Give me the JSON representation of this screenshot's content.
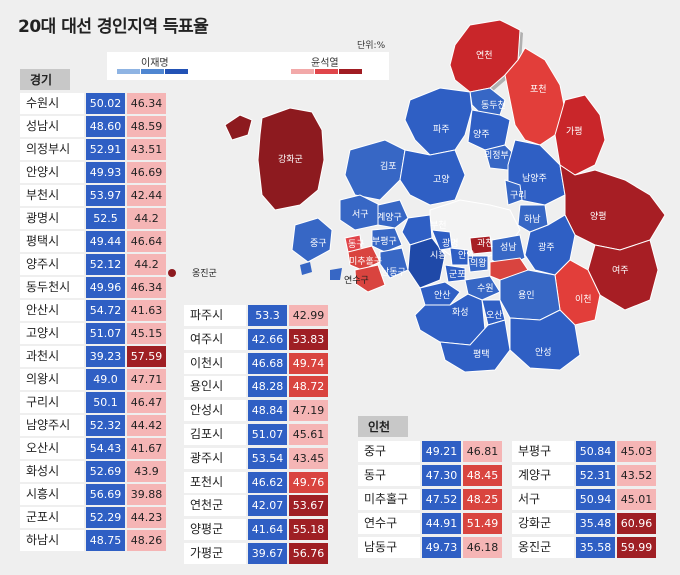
{
  "title": "20대 대선 경인지역 득표율",
  "unit": "단위:%",
  "legend": {
    "lee_label": "이재명",
    "yoon_label": "윤석열",
    "lee_colors": [
      "#8fb4e3",
      "#4f86d1",
      "#2252b5"
    ],
    "yoon_colors": [
      "#f2a9a9",
      "#e0454a",
      "#a01c22"
    ]
  },
  "colors": {
    "lee_cell": "#2f5fc4",
    "yoon_light": "#f5b5b5",
    "yoon_medium": "#d9443f",
    "yoon_dark": "#9f1f24"
  },
  "gyeonggi": {
    "label": "경기",
    "rows_col1": [
      {
        "name": "수원시",
        "lee": "50.02",
        "yoon": "46.34",
        "tier": "light"
      },
      {
        "name": "성남시",
        "lee": "48.60",
        "yoon": "48.59",
        "tier": "light"
      },
      {
        "name": "의정부시",
        "lee": "52.91",
        "yoon": "43.51",
        "tier": "light"
      },
      {
        "name": "안양시",
        "lee": "49.93",
        "yoon": "46.69",
        "tier": "light"
      },
      {
        "name": "부천시",
        "lee": "53.97",
        "yoon": "42.44",
        "tier": "light"
      },
      {
        "name": "광명시",
        "lee": "52.5",
        "yoon": "44.2",
        "tier": "light"
      },
      {
        "name": "평택시",
        "lee": "49.44",
        "yoon": "46.64",
        "tier": "light"
      },
      {
        "name": "양주시",
        "lee": "52.12",
        "yoon": "44.2",
        "tier": "light"
      },
      {
        "name": "동두천시",
        "lee": "49.96",
        "yoon": "46.34",
        "tier": "light"
      },
      {
        "name": "안산시",
        "lee": "54.72",
        "yoon": "41.63",
        "tier": "light"
      },
      {
        "name": "고양시",
        "lee": "51.07",
        "yoon": "45.15",
        "tier": "light"
      },
      {
        "name": "과천시",
        "lee": "39.23",
        "yoon": "57.59",
        "tier": "dark"
      },
      {
        "name": "의왕시",
        "lee": "49.0",
        "yoon": "47.71",
        "tier": "light"
      },
      {
        "name": "구리시",
        "lee": "50.1",
        "yoon": "46.47",
        "tier": "light"
      },
      {
        "name": "남양주시",
        "lee": "52.32",
        "yoon": "44.42",
        "tier": "light"
      },
      {
        "name": "오산시",
        "lee": "54.43",
        "yoon": "41.67",
        "tier": "light"
      },
      {
        "name": "화성시",
        "lee": "52.69",
        "yoon": "43.9",
        "tier": "light"
      },
      {
        "name": "시흥시",
        "lee": "56.69",
        "yoon": "39.88",
        "tier": "light"
      },
      {
        "name": "군포시",
        "lee": "52.29",
        "yoon": "44.23",
        "tier": "light"
      },
      {
        "name": "하남시",
        "lee": "48.75",
        "yoon": "48.26",
        "tier": "light"
      }
    ],
    "rows_col2": [
      {
        "name": "파주시",
        "lee": "53.3",
        "yoon": "42.99",
        "tier": "light"
      },
      {
        "name": "여주시",
        "lee": "42.66",
        "yoon": "53.83",
        "tier": "dark"
      },
      {
        "name": "이천시",
        "lee": "46.68",
        "yoon": "49.74",
        "tier": "medium"
      },
      {
        "name": "용인시",
        "lee": "48.28",
        "yoon": "48.72",
        "tier": "medium"
      },
      {
        "name": "안성시",
        "lee": "48.84",
        "yoon": "47.19",
        "tier": "light"
      },
      {
        "name": "김포시",
        "lee": "51.07",
        "yoon": "45.61",
        "tier": "light"
      },
      {
        "name": "광주시",
        "lee": "53.54",
        "yoon": "43.45",
        "tier": "light"
      },
      {
        "name": "포천시",
        "lee": "46.62",
        "yoon": "49.76",
        "tier": "medium"
      },
      {
        "name": "연천군",
        "lee": "42.07",
        "yoon": "53.67",
        "tier": "dark"
      },
      {
        "name": "양평군",
        "lee": "41.64",
        "yoon": "55.18",
        "tier": "dark"
      },
      {
        "name": "가평군",
        "lee": "39.67",
        "yoon": "56.76",
        "tier": "dark"
      }
    ]
  },
  "incheon": {
    "label": "인천",
    "rows_col1": [
      {
        "name": "중구",
        "lee": "49.21",
        "yoon": "46.81",
        "tier": "light"
      },
      {
        "name": "동구",
        "lee": "47.30",
        "yoon": "48.45",
        "tier": "medium"
      },
      {
        "name": "미추홀구",
        "lee": "47.52",
        "yoon": "48.25",
        "tier": "medium"
      },
      {
        "name": "연수구",
        "lee": "44.91",
        "yoon": "51.49",
        "tier": "medium"
      },
      {
        "name": "남동구",
        "lee": "49.73",
        "yoon": "46.18",
        "tier": "light"
      }
    ],
    "rows_col2": [
      {
        "name": "부평구",
        "lee": "50.84",
        "yoon": "45.03",
        "tier": "light"
      },
      {
        "name": "계양구",
        "lee": "52.31",
        "yoon": "43.52",
        "tier": "light"
      },
      {
        "name": "서구",
        "lee": "50.94",
        "yoon": "45.01",
        "tier": "light"
      },
      {
        "name": "강화군",
        "lee": "35.48",
        "yoon": "60.96",
        "tier": "dark"
      },
      {
        "name": "옹진군",
        "lee": "35.58",
        "yoon": "59.99",
        "tier": "dark"
      }
    ]
  },
  "map_labels": {
    "yeoncheon": "연천",
    "pocheon": "포천",
    "dongducheon": "동두천",
    "paju": "파주",
    "yangju": "양주",
    "uijeongbu": "의정부",
    "gapyeong": "가평",
    "ganghwa": "강화군",
    "gimpo": "김포",
    "goyang": "고양",
    "namyangju": "남양주",
    "guri": "구리",
    "seogu": "서구",
    "gyeyang": "계양구",
    "bucheon": "부천",
    "hanam": "하남",
    "yangpyeong": "양평",
    "junggu": "중구",
    "dongu": "동구",
    "bupyeong": "부평구",
    "gwangmyeong": "광명",
    "gwacheon": "과천",
    "seongnam": "성남",
    "gwangju": "광주",
    "michuhol": "미추홀구",
    "siheung": "시흥",
    "anyang": "안양",
    "uiwang": "의왕",
    "yeosu": "연수구",
    "namdong": "남동구",
    "gunpo": "군포",
    "suwon": "수원",
    "ansan": "안산",
    "yongin": "용인",
    "yeoju": "여주",
    "ongjin": "옹진군",
    "icheon": "이천",
    "hwaseong": "화성",
    "osan": "오산",
    "anseong": "안성",
    "pyeongtaek": "평택"
  }
}
